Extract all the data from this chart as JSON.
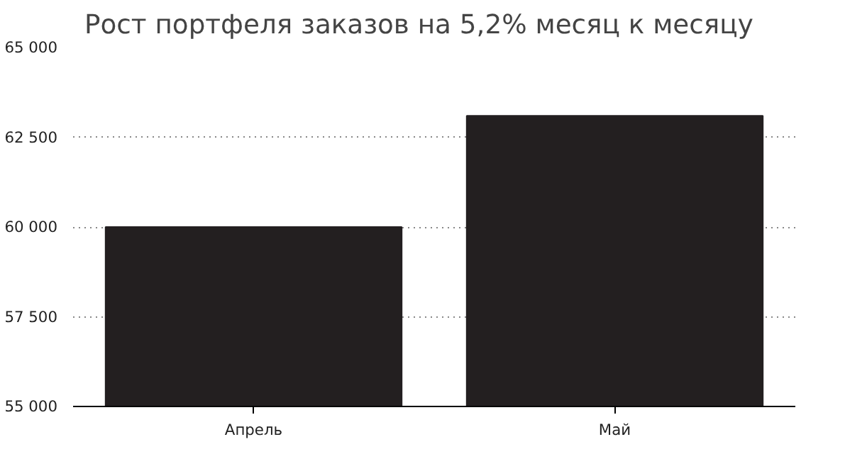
{
  "chart_data": {
    "type": "bar",
    "title": "Рост портфеля заказов на 5,2% месяц к месяцу",
    "categories": [
      "Апрель",
      "Май"
    ],
    "values": [
      60000,
      63100
    ],
    "color": "#231f20",
    "ylim": [
      55000,
      65000
    ],
    "yticks": [
      {
        "value": 55000,
        "label": "55 000"
      },
      {
        "value": 57500,
        "label": "57 500"
      },
      {
        "value": 60000,
        "label": "60 000"
      },
      {
        "value": 62500,
        "label": "62 500"
      },
      {
        "value": 65000,
        "label": "65 000"
      }
    ],
    "grid": "y"
  }
}
